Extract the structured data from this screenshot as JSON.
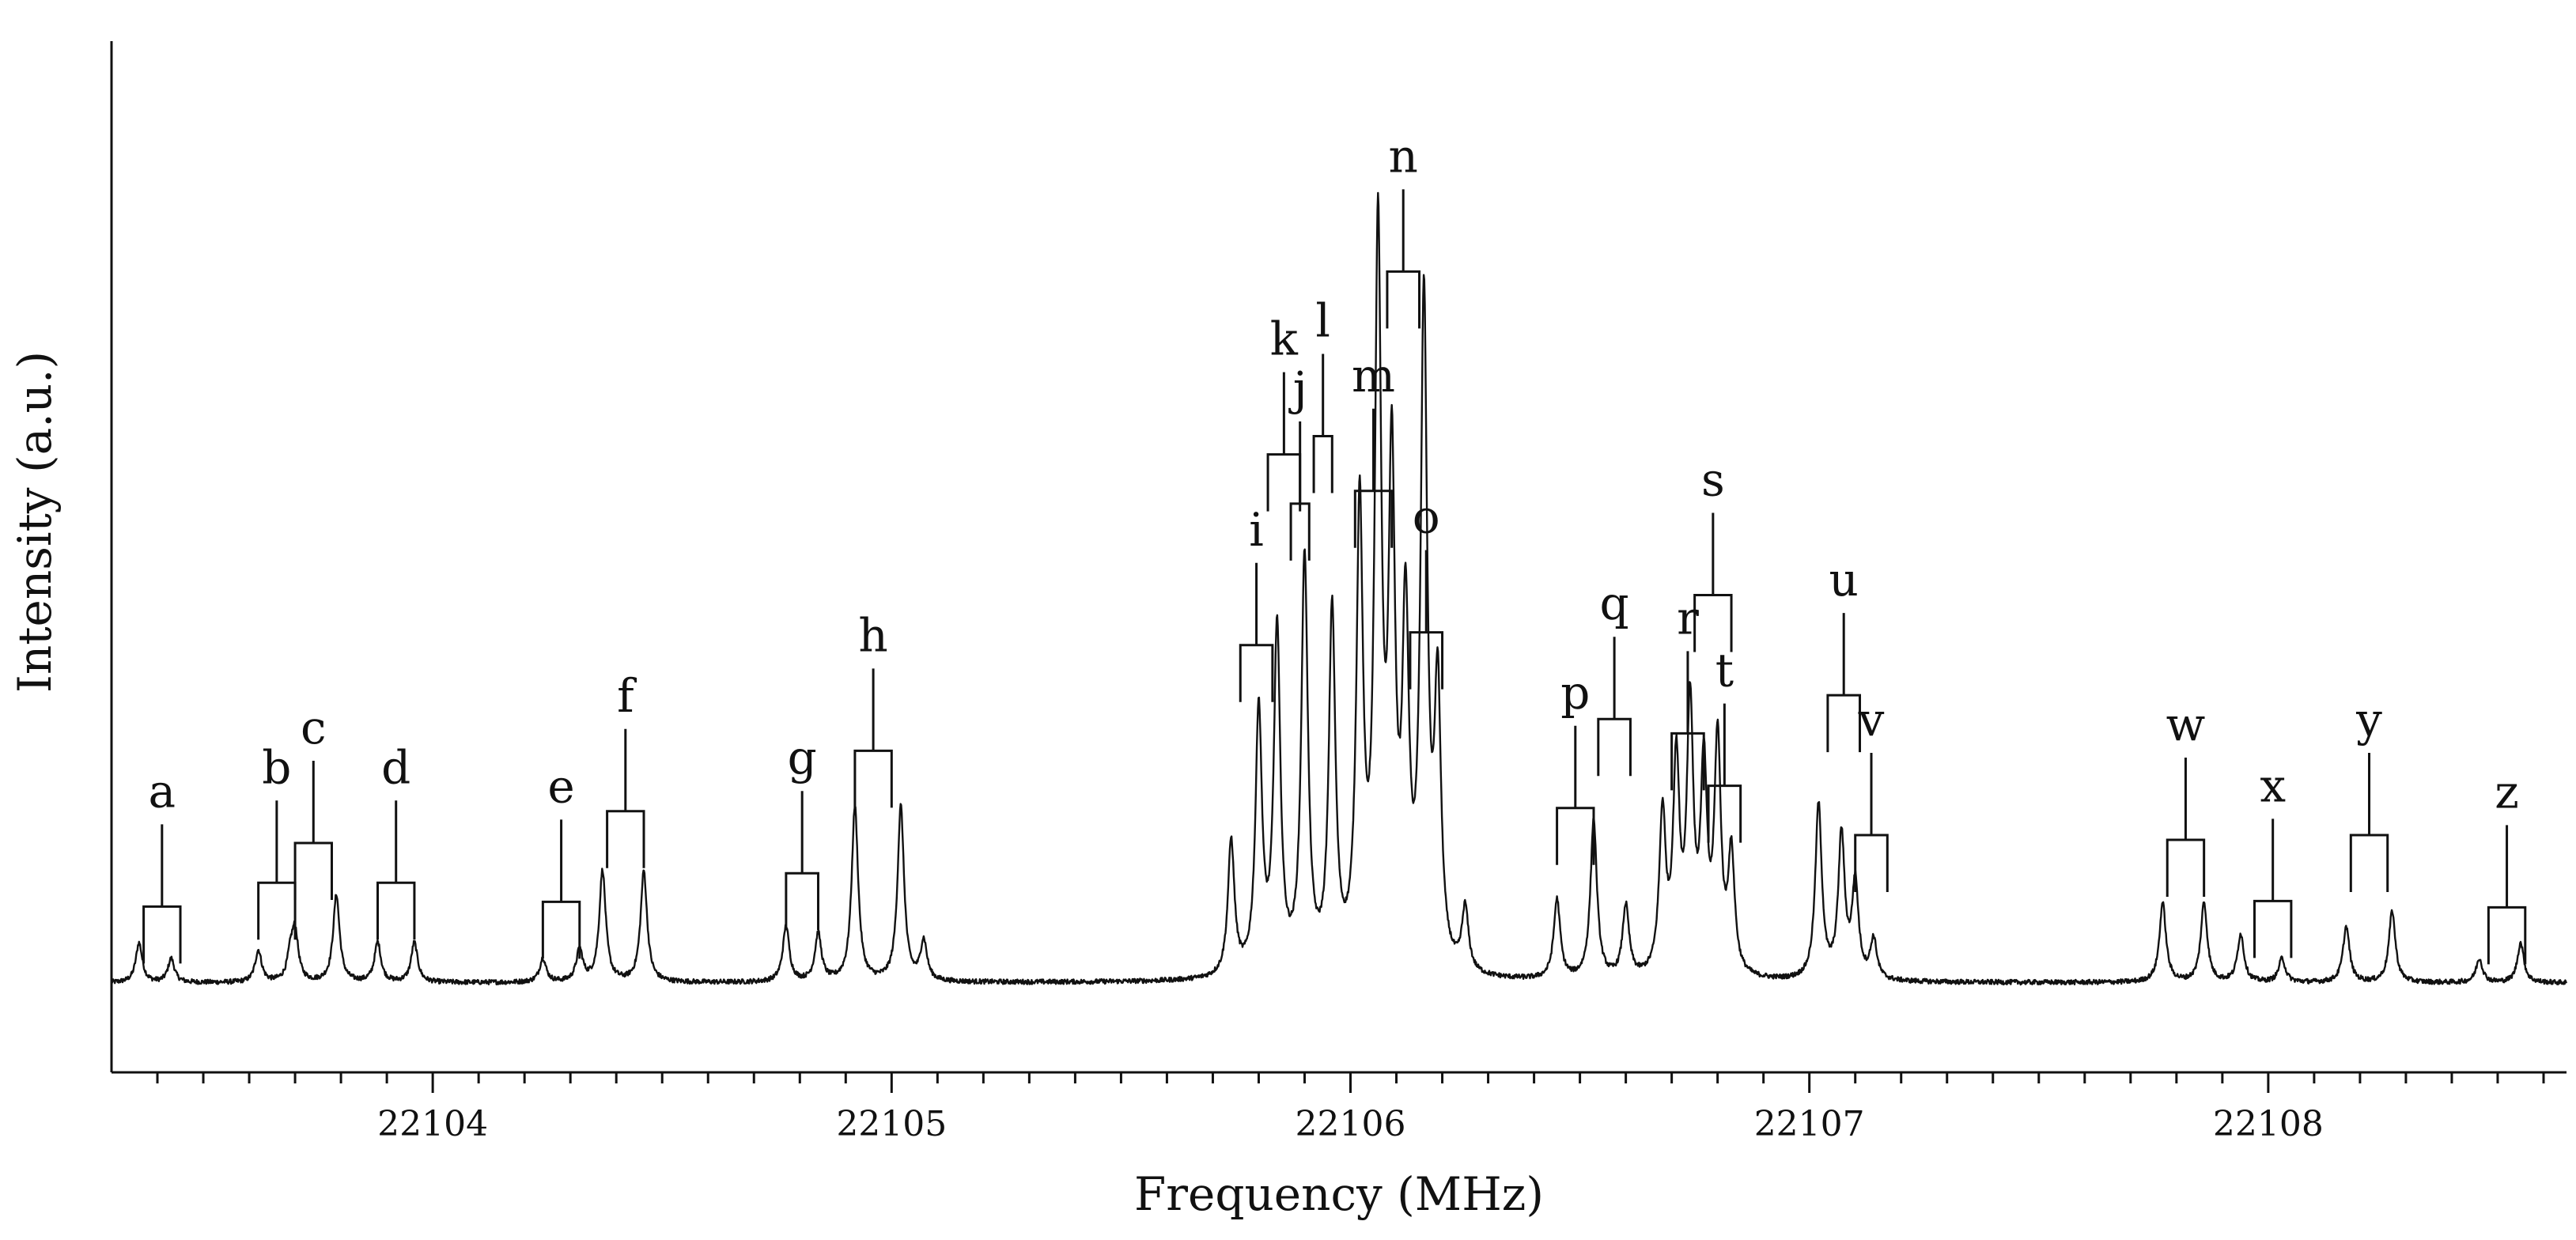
{
  "chart_data": {
    "type": "line",
    "title": "",
    "xlabel": "Frequency (MHz)",
    "ylabel": "Intensity (a.u.)",
    "xlim": [
      22103.3,
      22108.65
    ],
    "ylim": [
      0,
      1
    ],
    "grid": false,
    "x_ticks": [
      "22104",
      "22105",
      "22106",
      "22107",
      "22108"
    ],
    "series": [
      {
        "name": "spectrum",
        "baseline": 0.022,
        "peaks": [
          {
            "x": 22103.36,
            "h": 0.05
          },
          {
            "x": 22103.43,
            "h": 0.03
          },
          {
            "x": 22103.62,
            "h": 0.04
          },
          {
            "x": 22103.69,
            "h": 0.03
          },
          {
            "x": 22103.7,
            "h": 0.06
          },
          {
            "x": 22103.79,
            "h": 0.11
          },
          {
            "x": 22103.88,
            "h": 0.05
          },
          {
            "x": 22103.96,
            "h": 0.05
          },
          {
            "x": 22104.24,
            "h": 0.03
          },
          {
            "x": 22104.32,
            "h": 0.04
          },
          {
            "x": 22104.37,
            "h": 0.14
          },
          {
            "x": 22104.46,
            "h": 0.14
          },
          {
            "x": 22104.77,
            "h": 0.07
          },
          {
            "x": 22104.84,
            "h": 0.06
          },
          {
            "x": 22104.92,
            "h": 0.22
          },
          {
            "x": 22105.02,
            "h": 0.22
          },
          {
            "x": 22105.07,
            "h": 0.05
          },
          {
            "x": 22105.74,
            "h": 0.17
          },
          {
            "x": 22105.8,
            "h": 0.33
          },
          {
            "x": 22105.84,
            "h": 0.43
          },
          {
            "x": 22105.9,
            "h": 0.52
          },
          {
            "x": 22105.96,
            "h": 0.45
          },
          {
            "x": 22106.02,
            "h": 0.57
          },
          {
            "x": 22106.06,
            "h": 0.9
          },
          {
            "x": 22106.09,
            "h": 0.6
          },
          {
            "x": 22106.12,
            "h": 0.42
          },
          {
            "x": 22106.16,
            "h": 0.83
          },
          {
            "x": 22106.19,
            "h": 0.34
          },
          {
            "x": 22106.25,
            "h": 0.08
          },
          {
            "x": 22106.45,
            "h": 0.1
          },
          {
            "x": 22106.53,
            "h": 0.2
          },
          {
            "x": 22106.6,
            "h": 0.09
          },
          {
            "x": 22106.68,
            "h": 0.2
          },
          {
            "x": 22106.71,
            "h": 0.26
          },
          {
            "x": 22106.74,
            "h": 0.33
          },
          {
            "x": 22106.77,
            "h": 0.25
          },
          {
            "x": 22106.8,
            "h": 0.29
          },
          {
            "x": 22106.83,
            "h": 0.15
          },
          {
            "x": 22107.02,
            "h": 0.22
          },
          {
            "x": 22107.07,
            "h": 0.18
          },
          {
            "x": 22107.1,
            "h": 0.12
          },
          {
            "x": 22107.14,
            "h": 0.05
          },
          {
            "x": 22107.77,
            "h": 0.1
          },
          {
            "x": 22107.86,
            "h": 0.1
          },
          {
            "x": 22107.94,
            "h": 0.06
          },
          {
            "x": 22108.03,
            "h": 0.03
          },
          {
            "x": 22108.17,
            "h": 0.07
          },
          {
            "x": 22108.27,
            "h": 0.09
          },
          {
            "x": 22108.46,
            "h": 0.03
          },
          {
            "x": 22108.55,
            "h": 0.05
          }
        ]
      }
    ],
    "annotations": [
      {
        "label": "a",
        "x1": 22103.37,
        "x2": 22103.45,
        "y": 0.118
      },
      {
        "label": "b",
        "x1": 22103.62,
        "x2": 22103.7,
        "y": 0.148
      },
      {
        "label": "c",
        "x1": 22103.7,
        "x2": 22103.78,
        "y": 0.198
      },
      {
        "label": "d",
        "x1": 22103.88,
        "x2": 22103.96,
        "y": 0.148
      },
      {
        "label": "e",
        "x1": 22104.24,
        "x2": 22104.32,
        "y": 0.124
      },
      {
        "label": "f",
        "x1": 22104.38,
        "x2": 22104.46,
        "y": 0.238
      },
      {
        "label": "g",
        "x1": 22104.77,
        "x2": 22104.84,
        "y": 0.16
      },
      {
        "label": "h",
        "x1": 22104.92,
        "x2": 22105.0,
        "y": 0.314
      },
      {
        "label": "i",
        "x1": 22105.76,
        "x2": 22105.83,
        "y": 0.447
      },
      {
        "label": "j",
        "x1": 22105.87,
        "x2": 22105.91,
        "y": 0.625
      },
      {
        "label": "k",
        "x1": 22105.82,
        "x2": 22105.89,
        "y": 0.687
      },
      {
        "label": "l",
        "x1": 22105.92,
        "x2": 22105.96,
        "y": 0.71
      },
      {
        "label": "m",
        "x1": 22106.01,
        "x2": 22106.09,
        "y": 0.641
      },
      {
        "label": "n",
        "x1": 22106.08,
        "x2": 22106.15,
        "y": 0.917
      },
      {
        "label": "o",
        "x1": 22106.13,
        "x2": 22106.2,
        "y": 0.463
      },
      {
        "label": "p",
        "x1": 22106.45,
        "x2": 22106.53,
        "y": 0.242
      },
      {
        "label": "q",
        "x1": 22106.54,
        "x2": 22106.61,
        "y": 0.354
      },
      {
        "label": "r",
        "x1": 22106.7,
        "x2": 22106.77,
        "y": 0.336
      },
      {
        "label": "s",
        "x1": 22106.75,
        "x2": 22106.83,
        "y": 0.51
      },
      {
        "label": "t",
        "x1": 22106.78,
        "x2": 22106.85,
        "y": 0.27
      },
      {
        "label": "u",
        "x1": 22107.04,
        "x2": 22107.11,
        "y": 0.384
      },
      {
        "label": "v",
        "x1": 22107.1,
        "x2": 22107.17,
        "y": 0.208
      },
      {
        "label": "w",
        "x1": 22107.78,
        "x2": 22107.86,
        "y": 0.202
      },
      {
        "label": "x",
        "x1": 22107.97,
        "x2": 22108.05,
        "y": 0.125
      },
      {
        "label": "y",
        "x1": 22108.18,
        "x2": 22108.26,
        "y": 0.208
      },
      {
        "label": "z",
        "x1": 22108.48,
        "x2": 22108.56,
        "y": 0.117
      }
    ]
  }
}
